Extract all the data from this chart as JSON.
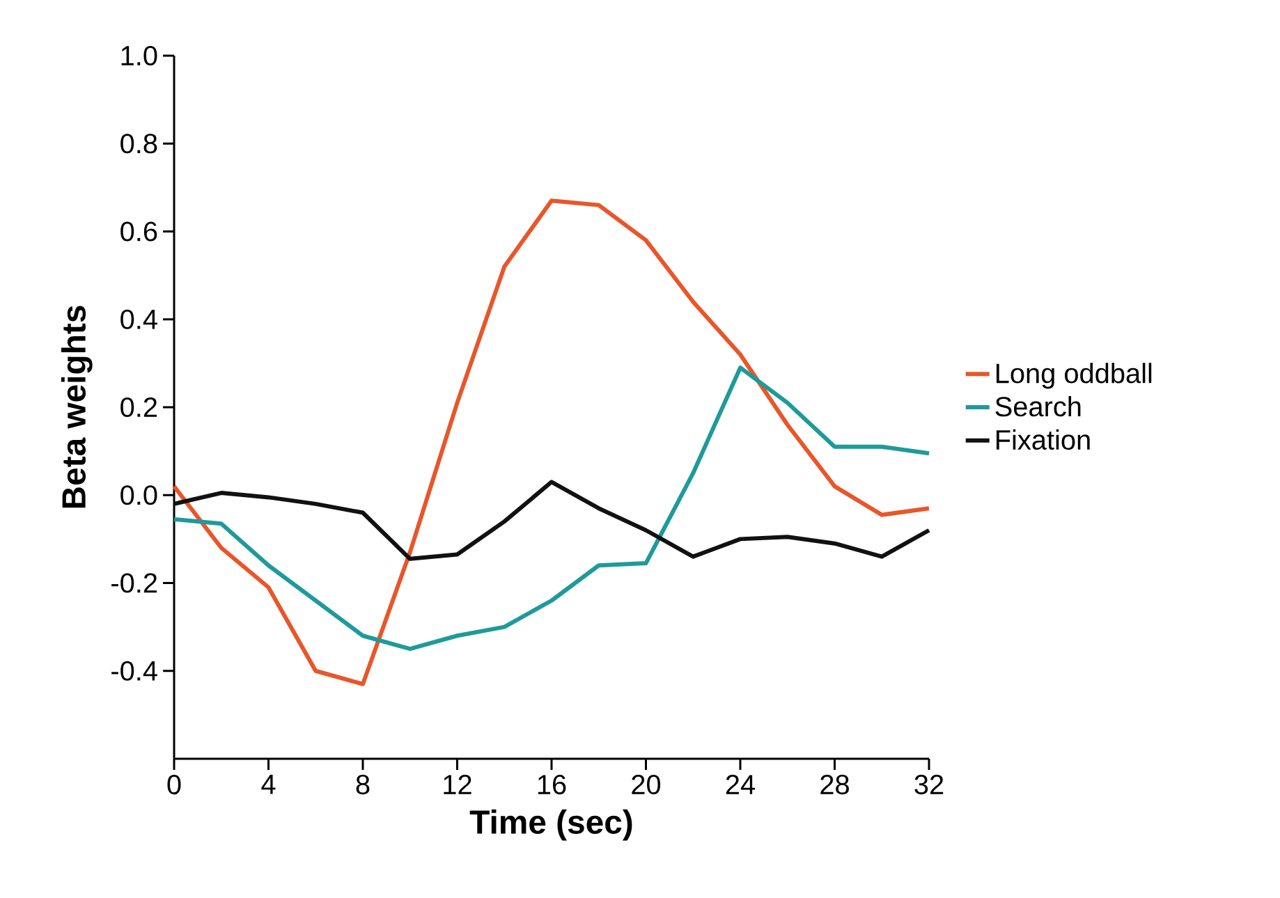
{
  "chart_data": {
    "type": "line",
    "xlabel": "Time (sec)",
    "ylabel": "Beta weights",
    "x": [
      0,
      2,
      4,
      6,
      8,
      10,
      12,
      14,
      16,
      18,
      20,
      22,
      24,
      26,
      28,
      30,
      32
    ],
    "series": [
      {
        "name": "Long oddball",
        "color": "#e8562a",
        "values": [
          0.02,
          -0.12,
          -0.21,
          -0.4,
          -0.43,
          -0.13,
          0.21,
          0.52,
          0.67,
          0.66,
          0.58,
          0.44,
          0.32,
          0.16,
          0.02,
          -0.045,
          -0.03
        ]
      },
      {
        "name": "Search",
        "color": "#1f9a9a",
        "values": [
          -0.055,
          -0.065,
          -0.16,
          -0.24,
          -0.32,
          -0.35,
          -0.32,
          -0.3,
          -0.24,
          -0.16,
          -0.155,
          0.05,
          0.29,
          0.21,
          0.11,
          0.11,
          0.095
        ]
      },
      {
        "name": "Fixation",
        "color": "#111111",
        "values": [
          -0.02,
          0.005,
          -0.005,
          -0.02,
          -0.04,
          -0.145,
          -0.135,
          -0.06,
          0.03,
          -0.03,
          -0.08,
          -0.14,
          -0.1,
          -0.095,
          -0.11,
          -0.14,
          -0.08
        ]
      }
    ],
    "xlim": [
      0,
      32
    ],
    "ylim": [
      -0.6,
      1.0
    ],
    "xticks": [
      0,
      4,
      8,
      12,
      16,
      20,
      24,
      28,
      32
    ],
    "yticks": [
      {
        "value": -0.4,
        "label": "-0.4"
      },
      {
        "value": -0.2,
        "label": "-0.2"
      },
      {
        "value": 0.0,
        "label": "0.0"
      },
      {
        "value": 0.2,
        "label": "0.2"
      },
      {
        "value": 0.4,
        "label": "0.4"
      },
      {
        "value": 0.6,
        "label": "0.6"
      },
      {
        "value": 0.8,
        "label": "0.8"
      },
      {
        "value": 1.0,
        "label": "1.0"
      }
    ],
    "grid": false,
    "legend": "right",
    "marker": "none",
    "line_style": "solid"
  }
}
